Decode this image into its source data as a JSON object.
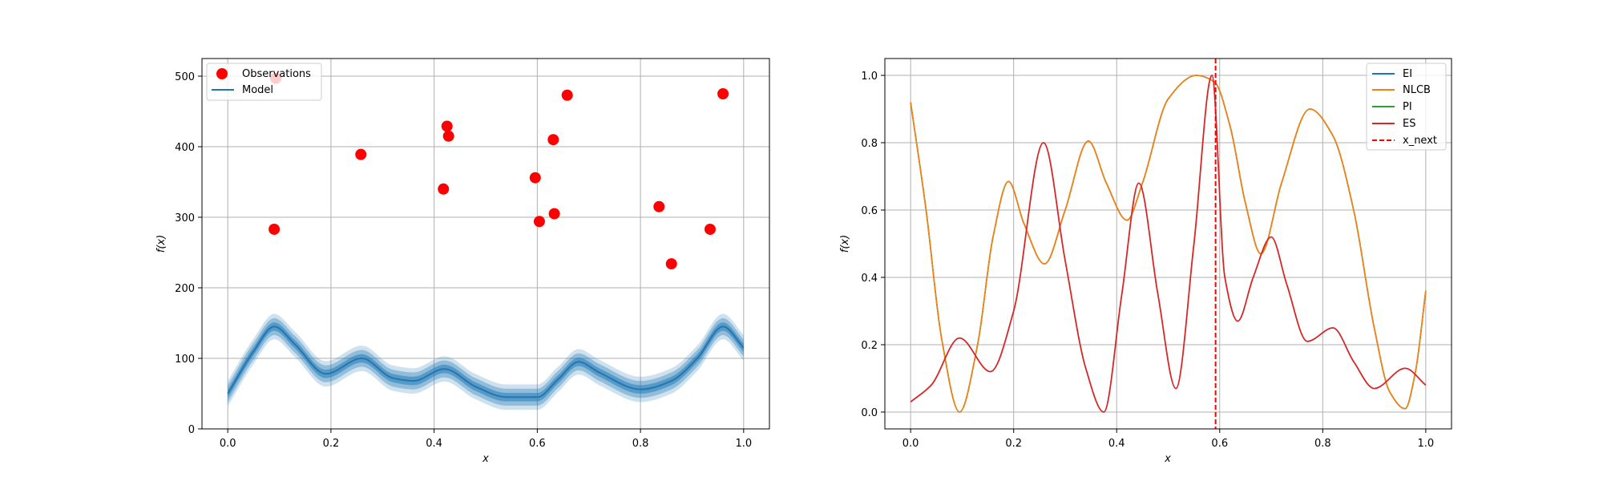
{
  "chart_data": [
    {
      "type": "scatter",
      "title": "",
      "xlabel": "x",
      "ylabel": "f(x)",
      "xlim": [
        -0.05,
        1.05
      ],
      "ylim": [
        0,
        525
      ],
      "xticks": [
        "0.0",
        "0.2",
        "0.4",
        "0.6",
        "0.8",
        "1.0"
      ],
      "xtick_values": [
        0,
        0.2,
        0.4,
        0.6,
        0.8,
        1.0
      ],
      "yticks": [
        "0",
        "100",
        "200",
        "300",
        "400",
        "500"
      ],
      "ytick_values": [
        0,
        100,
        200,
        300,
        400,
        500
      ],
      "grid": true,
      "legend_position": "top-left",
      "series": [
        {
          "name": "Observations",
          "kind": "points",
          "color": "#ff0000",
          "x": [
            0.09,
            0.093,
            0.258,
            0.418,
            0.425,
            0.428,
            0.596,
            0.604,
            0.631,
            0.633,
            0.658,
            0.836,
            0.86,
            0.935,
            0.96
          ],
          "y": [
            283,
            497,
            389,
            340,
            429,
            415,
            356,
            294,
            410,
            305,
            473,
            315,
            234,
            283,
            475
          ]
        },
        {
          "name": "Model",
          "kind": "line_with_bands",
          "color": "#1f77b4",
          "x": [
            0.0,
            0.05,
            0.09,
            0.13,
            0.19,
            0.26,
            0.32,
            0.36,
            0.42,
            0.48,
            0.54,
            0.6,
            0.64,
            0.68,
            0.72,
            0.8,
            0.86,
            0.91,
            0.96,
            1.0
          ],
          "y": [
            50,
            110,
            145,
            120,
            78,
            100,
            72,
            68,
            85,
            60,
            45,
            45,
            70,
            95,
            80,
            56,
            68,
            100,
            145,
            115
          ],
          "band_offsets": [
            6,
            12,
            18
          ]
        }
      ]
    },
    {
      "type": "line",
      "title": "",
      "xlabel": "x",
      "ylabel": "f(x)",
      "xlim": [
        -0.05,
        1.05
      ],
      "ylim": [
        -0.05,
        1.05
      ],
      "xticks": [
        "0.0",
        "0.2",
        "0.4",
        "0.6",
        "0.8",
        "1.0"
      ],
      "xtick_values": [
        0,
        0.2,
        0.4,
        0.6,
        0.8,
        1.0
      ],
      "yticks": [
        "0.0",
        "0.2",
        "0.4",
        "0.6",
        "0.8",
        "1.0"
      ],
      "ytick_values": [
        0,
        0.2,
        0.4,
        0.6,
        0.8,
        1.0
      ],
      "grid": true,
      "legend_position": "top-right",
      "x": [
        0.0,
        0.03,
        0.06,
        0.095,
        0.13,
        0.16,
        0.19,
        0.22,
        0.26,
        0.3,
        0.345,
        0.38,
        0.42,
        0.45,
        0.5,
        0.555,
        0.59,
        0.62,
        0.65,
        0.68,
        0.72,
        0.775,
        0.82,
        0.86,
        0.9,
        0.93,
        0.96,
        0.98,
        1.0
      ],
      "series": [
        {
          "name": "EI",
          "color": "#1f77b4",
          "y": [
            0.92,
            0.6,
            0.22,
            0.0,
            0.2,
            0.52,
            0.685,
            0.56,
            0.44,
            0.6,
            0.805,
            0.68,
            0.57,
            0.68,
            0.93,
            1.0,
            0.98,
            0.85,
            0.62,
            0.47,
            0.68,
            0.9,
            0.82,
            0.6,
            0.25,
            0.06,
            0.01,
            0.12,
            0.36
          ]
        },
        {
          "name": "NLCB",
          "color": "#ff7f0e",
          "y": [
            0.92,
            0.6,
            0.22,
            0.0,
            0.2,
            0.52,
            0.685,
            0.56,
            0.44,
            0.6,
            0.805,
            0.68,
            0.57,
            0.68,
            0.93,
            1.0,
            0.98,
            0.85,
            0.62,
            0.47,
            0.68,
            0.9,
            0.82,
            0.6,
            0.25,
            0.06,
            0.01,
            0.12,
            0.36
          ]
        },
        {
          "name": "PI",
          "color": "#2ca02c",
          "y": [
            0.92,
            0.6,
            0.22,
            0.0,
            0.2,
            0.52,
            0.685,
            0.56,
            0.44,
            0.6,
            0.805,
            0.68,
            0.57,
            0.68,
            0.93,
            1.0,
            0.98,
            0.85,
            0.62,
            0.47,
            0.68,
            0.9,
            0.82,
            0.6,
            0.25,
            0.06,
            0.01,
            0.12,
            0.36
          ]
        },
        {
          "name": "ES",
          "color": "#d62728",
          "x": [
            0.0,
            0.04,
            0.095,
            0.155,
            0.2,
            0.258,
            0.3,
            0.34,
            0.375,
            0.41,
            0.443,
            0.48,
            0.515,
            0.55,
            0.585,
            0.61,
            0.635,
            0.665,
            0.7,
            0.73,
            0.77,
            0.82,
            0.86,
            0.9,
            0.96,
            1.0
          ],
          "y": [
            0.03,
            0.08,
            0.22,
            0.12,
            0.3,
            0.8,
            0.45,
            0.13,
            0.0,
            0.35,
            0.68,
            0.35,
            0.07,
            0.5,
            1.0,
            0.4,
            0.27,
            0.4,
            0.52,
            0.38,
            0.21,
            0.25,
            0.15,
            0.07,
            0.13,
            0.08
          ]
        },
        {
          "name": "x_next",
          "color": "#ff0000",
          "style": "dashed",
          "vertical_x": 0.592
        }
      ]
    }
  ]
}
